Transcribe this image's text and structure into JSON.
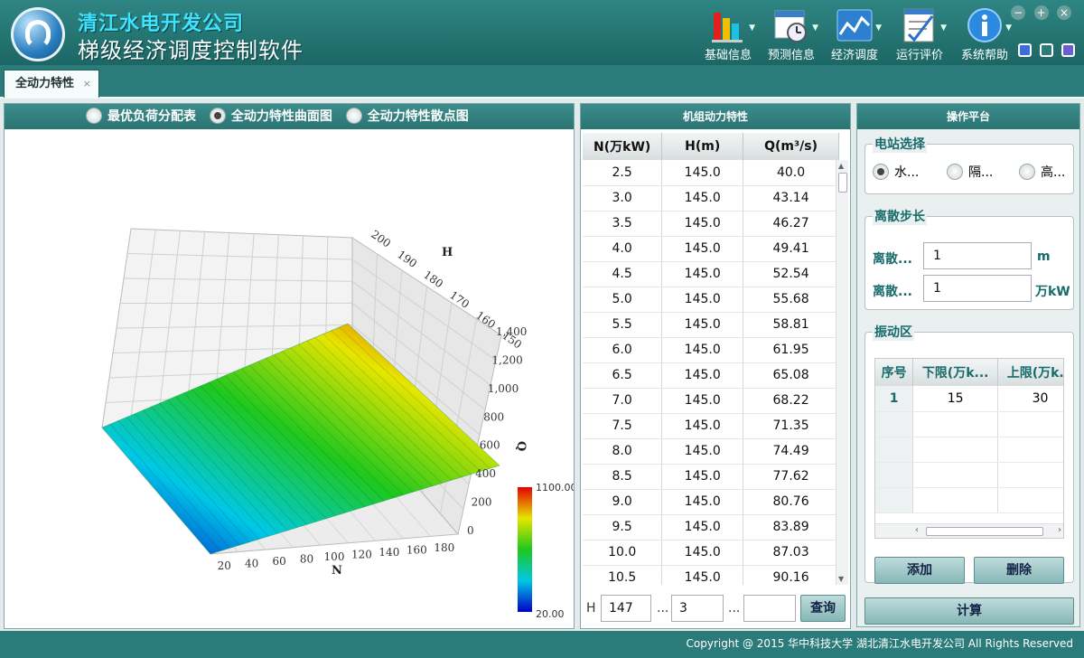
{
  "header": {
    "title": "清江水电开发公司",
    "subtitle": "梯级经济调度控制软件",
    "menu": [
      {
        "label": "基础信息",
        "icon": "bar-chart-icon"
      },
      {
        "label": "预测信息",
        "icon": "calendar-clock-icon"
      },
      {
        "label": "经济调度",
        "icon": "line-graph-icon"
      },
      {
        "label": "运行评价",
        "icon": "checklist-icon"
      },
      {
        "label": "系统帮助",
        "icon": "info-icon"
      }
    ],
    "window_buttons": [
      "−",
      "+",
      "×"
    ]
  },
  "tab": {
    "label": "全动力特性",
    "close": "×"
  },
  "left_panel": {
    "options": [
      "最优负荷分配表",
      "全动力特性曲面图",
      "全动力特性散点图"
    ],
    "selected": 1
  },
  "chart_data": {
    "type": "surface3d",
    "x_axis": {
      "name": "N",
      "ticks": [
        "20",
        "40",
        "60",
        "80",
        "100",
        "120",
        "140",
        "160",
        "180"
      ]
    },
    "y_axis": {
      "name": "H",
      "ticks": [
        "200",
        "190",
        "180",
        "170",
        "160",
        "150"
      ]
    },
    "z_axis": {
      "name": "Q",
      "ticks": [
        "0",
        "200",
        "400",
        "600",
        "800",
        "1,000",
        "1,200",
        "1,400"
      ]
    },
    "colorbar": {
      "max": "1100.00",
      "min": "20.00"
    },
    "colors": [
      "#0000c8",
      "#00c8e6",
      "#1ec81e",
      "#e6e600",
      "#e60000"
    ]
  },
  "mid_panel": {
    "title": "机组动力特性",
    "columns": [
      "N(万kW)",
      "H(m)",
      "Q(m³/s)"
    ],
    "rows": [
      [
        "2.5",
        "145.0",
        "40.0"
      ],
      [
        "3.0",
        "145.0",
        "43.14"
      ],
      [
        "3.5",
        "145.0",
        "46.27"
      ],
      [
        "4.0",
        "145.0",
        "49.41"
      ],
      [
        "4.5",
        "145.0",
        "52.54"
      ],
      [
        "5.0",
        "145.0",
        "55.68"
      ],
      [
        "5.5",
        "145.0",
        "58.81"
      ],
      [
        "6.0",
        "145.0",
        "61.95"
      ],
      [
        "6.5",
        "145.0",
        "65.08"
      ],
      [
        "7.0",
        "145.0",
        "68.22"
      ],
      [
        "7.5",
        "145.0",
        "71.35"
      ],
      [
        "8.0",
        "145.0",
        "74.49"
      ],
      [
        "8.5",
        "145.0",
        "77.62"
      ],
      [
        "9.0",
        "145.0",
        "80.76"
      ],
      [
        "9.5",
        "145.0",
        "83.89"
      ],
      [
        "10.0",
        "145.0",
        "87.03"
      ],
      [
        "10.5",
        "145.0",
        "90.16"
      ]
    ],
    "query": {
      "h_label": "H",
      "h_value": "147",
      "sep1": "...",
      "v2": "3",
      "sep2": "...",
      "v3": "",
      "button": "查询"
    }
  },
  "right_panel": {
    "title": "操作平台",
    "station": {
      "label": "电站选择",
      "options": [
        "水...",
        "隔...",
        "高..."
      ],
      "selected": 0
    },
    "step": {
      "label": "离散步长",
      "row1_label": "离散...",
      "row1_value": "1",
      "row1_unit": "m",
      "row2_label": "离散...",
      "row2_value": "1",
      "row2_unit": "万kW"
    },
    "vibration": {
      "label": "振动区",
      "columns": [
        "序号",
        "下限(万k...",
        "上限(万k..."
      ],
      "rows": [
        [
          "1",
          "15",
          "30"
        ]
      ]
    },
    "add_button": "添加",
    "delete_button": "删除",
    "calc_button": "计算"
  },
  "footer": {
    "text": "Copyright @ 2015  华中科技大学 湖北清江水电开发公司 All Rights Reserved"
  }
}
